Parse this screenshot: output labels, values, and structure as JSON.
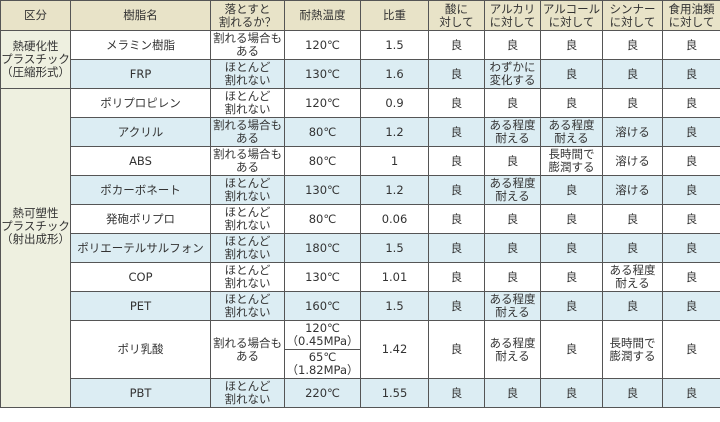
{
  "headers": [
    "区分",
    "樹脂名",
    "落とすと\n割れるか？",
    "耐熱温度",
    "比重",
    "酸に\n対して",
    "アルカリ\nに対して",
    "アルコール\nに対して",
    "シンナー\nに対して",
    "食用油類\nに対して"
  ],
  "categories": [
    {
      "label": "熱硬化性\nプラスチック\n（圧縮形式）",
      "rows": [
        0,
        1
      ]
    },
    {
      "label": "熱可塑性\nプラスチック\n（射出成形）",
      "rows": [
        2,
        3,
        4,
        5,
        6,
        7,
        8,
        9,
        10,
        11
      ]
    }
  ],
  "rows": [
    {
      "name": "メラミン樹脂",
      "drop": "割れる場合も\nある",
      "heat": "120℃",
      "gravity": "1.5",
      "acid": "良",
      "alkali": "良",
      "alcohol": "良",
      "thinner": "良",
      "oil": "良"
    },
    {
      "name": "FRP",
      "drop": "ほとんど\n割れない",
      "heat": "130℃",
      "gravity": "1.6",
      "acid": "良",
      "alkali": "わずかに\n変化する",
      "alcohol": "良",
      "thinner": "良",
      "oil": "良"
    },
    {
      "name": "ポリプロピレン",
      "drop": "ほとんど\n割れない",
      "heat": "120℃",
      "gravity": "0.9",
      "acid": "良",
      "alkali": "良",
      "alcohol": "良",
      "thinner": "良",
      "oil": "良"
    },
    {
      "name": "アクリル",
      "drop": "割れる場合も\nある",
      "heat": "80℃",
      "gravity": "1.2",
      "acid": "良",
      "alkali": "ある程度\n耐える",
      "alcohol": "ある程度\n耐える",
      "thinner": "溶ける",
      "oil": "良"
    },
    {
      "name": "ABS",
      "drop": "割れる場合も\nある",
      "heat": "80℃",
      "gravity": "1",
      "acid": "良",
      "alkali": "良",
      "alcohol": "長時間で\n膨潤する",
      "thinner": "溶ける",
      "oil": "良"
    },
    {
      "name": "ポカーボネート",
      "drop": "ほとんど\n割れない",
      "heat": "130℃",
      "gravity": "1.2",
      "acid": "良",
      "alkali": "ある程度\n耐える",
      "alcohol": "良",
      "thinner": "溶ける",
      "oil": "良"
    },
    {
      "name": "発砲ポリプロ",
      "drop": "ほとんど\n割れない",
      "heat": "80℃",
      "gravity": "0.06",
      "acid": "良",
      "alkali": "良",
      "alcohol": "良",
      "thinner": "良",
      "oil": "良"
    },
    {
      "name": "ポリエーテルサルフォン",
      "drop": "ほとんど\n割れない",
      "heat": "180℃",
      "gravity": "1.5",
      "acid": "良",
      "alkali": "良",
      "alcohol": "良",
      "thinner": "良",
      "oil": "良"
    },
    {
      "name": "COP",
      "drop": "ほとんど\n割れない",
      "heat": "130℃",
      "gravity": "1.01",
      "acid": "良",
      "alkali": "良",
      "alcohol": "良",
      "thinner": "ある程度\n耐える",
      "oil": "良"
    },
    {
      "name": "PET",
      "drop": "ほとんど\n割れない",
      "heat": "160℃",
      "gravity": "1.5",
      "acid": "良",
      "alkali": "ある程度\n耐える",
      "alcohol": "良",
      "thinner": "良",
      "oil": "良"
    },
    {
      "name": "ポリ乳酸",
      "drop": "割れる場合も\nある",
      "heat": "120℃\n（0.45MPa）",
      "heat2": "65℃\n（1.82MPa）",
      "gravity": "1.42",
      "acid": "良",
      "alkali": "ある程度\n耐える",
      "alcohol": "良",
      "thinner": "長時間で\n膨潤する",
      "oil": "良"
    },
    {
      "name": "PBT",
      "drop": "ほとんど\n割れない",
      "heat": "220℃",
      "gravity": "1.55",
      "acid": "良",
      "alkali": "良",
      "alcohol": "良",
      "thinner": "良",
      "oil": "良"
    }
  ],
  "colors": {
    "header": "#e8e3c8",
    "category": "#eef0e0",
    "row_alt": "#dcedf3",
    "row": "#ffffff",
    "border": "#555555"
  }
}
